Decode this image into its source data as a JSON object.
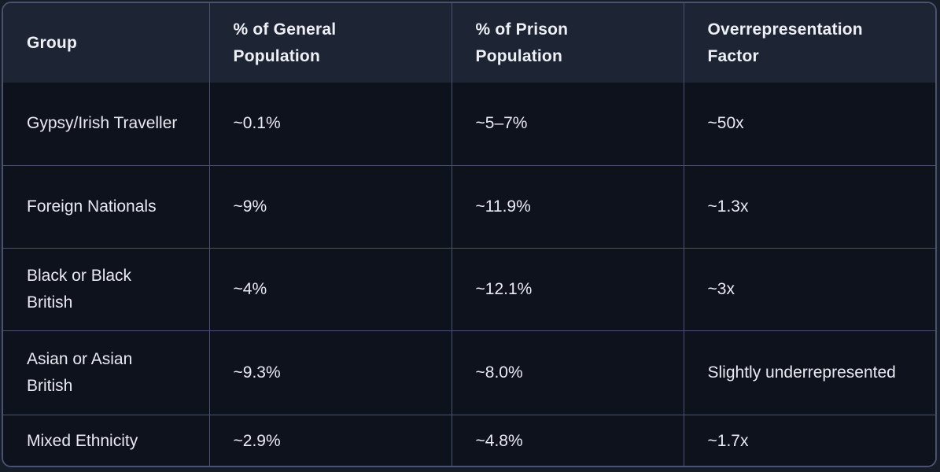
{
  "chart_data": {
    "type": "table",
    "columns": [
      "Group",
      "% of General Population",
      "% of Prison Population",
      "Overrepresentation Factor"
    ],
    "rows": [
      {
        "group": "Gypsy/Irish Traveller",
        "general_population": "~0.1%",
        "prison_population": "~5–7%",
        "overrepresentation": "~50x"
      },
      {
        "group": "Foreign Nationals",
        "general_population": "~9%",
        "prison_population": "~11.9%",
        "overrepresentation": "~1.3x"
      },
      {
        "group": "Black or Black British",
        "general_population": "~4%",
        "prison_population": "~12.1%",
        "overrepresentation": "~3x"
      },
      {
        "group": "Asian or Asian British",
        "general_population": "~9.3%",
        "prison_population": "~8.0%",
        "overrepresentation": "Slightly underrepresented"
      },
      {
        "group": "Mixed Ethnicity",
        "general_population": "~2.9%",
        "prison_population": "~4.8%",
        "overrepresentation": "~1.7x"
      }
    ]
  },
  "colors": {
    "page_background": "#171c29",
    "header_background": "#1d2433",
    "cell_background": "#0e121c",
    "border": "#49536f",
    "text": "#e8eaf2"
  }
}
